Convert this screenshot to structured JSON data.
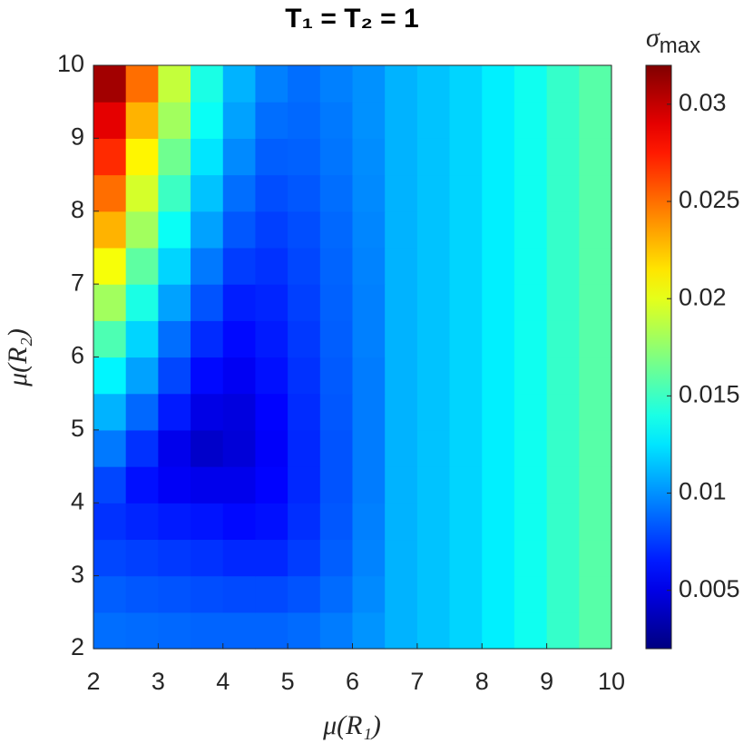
{
  "chart_data": {
    "type": "heatmap",
    "title": "T₁ = T₂ = 1",
    "x_label": "μ(R₁)",
    "y_label": "μ(R₂)",
    "colorbar_symbol": "σ",
    "colorbar_subscript": "max",
    "colormap": "jet",
    "clim": [
      0.002,
      0.032
    ],
    "colorbar_ticks": [
      0.005,
      0.01,
      0.015,
      0.02,
      0.025,
      0.03
    ],
    "xlim": [
      2,
      10
    ],
    "ylim": [
      2,
      10
    ],
    "xticks": [
      2,
      3,
      4,
      5,
      6,
      7,
      8,
      9,
      10
    ],
    "yticks": [
      2,
      3,
      4,
      5,
      6,
      7,
      8,
      9,
      10
    ],
    "x": [
      2.25,
      2.75,
      3.25,
      3.75,
      4.25,
      4.75,
      5.25,
      5.75,
      6.25,
      6.75,
      7.25,
      7.75,
      8.25,
      8.75,
      9.25,
      9.75
    ],
    "y": [
      2.25,
      2.75,
      3.25,
      3.75,
      4.25,
      4.75,
      5.25,
      5.75,
      6.25,
      6.75,
      7.25,
      7.75,
      8.25,
      8.75,
      9.25,
      9.75
    ],
    "values": [
      [
        0.009,
        0.0089,
        0.0088,
        0.0087,
        0.0087,
        0.0087,
        0.0089,
        0.0094,
        0.0101,
        0.011,
        0.0115,
        0.012,
        0.0128,
        0.0137,
        0.0148,
        0.0158
      ],
      [
        0.0085,
        0.0083,
        0.0082,
        0.008,
        0.0079,
        0.0079,
        0.0082,
        0.0089,
        0.0098,
        0.011,
        0.0115,
        0.012,
        0.0128,
        0.0137,
        0.0148,
        0.0158
      ],
      [
        0.0078,
        0.0076,
        0.0074,
        0.0072,
        0.0069,
        0.0069,
        0.0075,
        0.0085,
        0.0096,
        0.011,
        0.0115,
        0.012,
        0.0128,
        0.0137,
        0.0148,
        0.0158
      ],
      [
        0.0072,
        0.0068,
        0.0065,
        0.0063,
        0.006,
        0.0062,
        0.0071,
        0.0083,
        0.0095,
        0.011,
        0.0115,
        0.012,
        0.0128,
        0.0137,
        0.0148,
        0.0158
      ],
      [
        0.0078,
        0.0062,
        0.0055,
        0.0052,
        0.0052,
        0.0058,
        0.0069,
        0.0082,
        0.0094,
        0.011,
        0.0115,
        0.012,
        0.0128,
        0.0137,
        0.0148,
        0.0158
      ],
      [
        0.0093,
        0.0072,
        0.0052,
        0.0042,
        0.0046,
        0.0056,
        0.0069,
        0.0082,
        0.0094,
        0.011,
        0.0115,
        0.012,
        0.0128,
        0.0137,
        0.0148,
        0.0158
      ],
      [
        0.011,
        0.0088,
        0.0065,
        0.005,
        0.0048,
        0.0058,
        0.007,
        0.0083,
        0.0094,
        0.011,
        0.0115,
        0.012,
        0.0128,
        0.0137,
        0.0148,
        0.0158
      ],
      [
        0.013,
        0.0105,
        0.0078,
        0.006,
        0.0054,
        0.0062,
        0.0072,
        0.0084,
        0.0094,
        0.011,
        0.0115,
        0.012,
        0.0128,
        0.0137,
        0.0148,
        0.0158
      ],
      [
        0.0155,
        0.012,
        0.009,
        0.007,
        0.006,
        0.0065,
        0.0074,
        0.0085,
        0.0095,
        0.011,
        0.0115,
        0.012,
        0.0128,
        0.0137,
        0.0148,
        0.0158
      ],
      [
        0.018,
        0.014,
        0.0105,
        0.0082,
        0.0066,
        0.0068,
        0.0076,
        0.0086,
        0.0095,
        0.011,
        0.0115,
        0.012,
        0.0128,
        0.0137,
        0.0148,
        0.0158
      ],
      [
        0.0205,
        0.016,
        0.012,
        0.0093,
        0.0075,
        0.0072,
        0.0078,
        0.0087,
        0.0096,
        0.011,
        0.0115,
        0.012,
        0.0128,
        0.0137,
        0.0148,
        0.0158
      ],
      [
        0.023,
        0.018,
        0.0135,
        0.0105,
        0.0083,
        0.0076,
        0.008,
        0.0088,
        0.0097,
        0.011,
        0.0115,
        0.012,
        0.0128,
        0.0137,
        0.0148,
        0.0158
      ],
      [
        0.025,
        0.0195,
        0.015,
        0.0115,
        0.009,
        0.008,
        0.0083,
        0.009,
        0.0098,
        0.011,
        0.0115,
        0.012,
        0.0128,
        0.0137,
        0.0148,
        0.0158
      ],
      [
        0.027,
        0.021,
        0.0165,
        0.0125,
        0.0098,
        0.0085,
        0.0086,
        0.0092,
        0.0099,
        0.011,
        0.0115,
        0.012,
        0.0128,
        0.0137,
        0.0148,
        0.0158
      ],
      [
        0.029,
        0.023,
        0.018,
        0.0135,
        0.0105,
        0.009,
        0.0088,
        0.0093,
        0.01,
        0.011,
        0.0115,
        0.012,
        0.0128,
        0.0137,
        0.0148,
        0.0158
      ],
      [
        0.031,
        0.025,
        0.019,
        0.014,
        0.011,
        0.0095,
        0.009,
        0.0095,
        0.01,
        0.011,
        0.0115,
        0.012,
        0.0128,
        0.0137,
        0.0148,
        0.0158
      ]
    ]
  }
}
